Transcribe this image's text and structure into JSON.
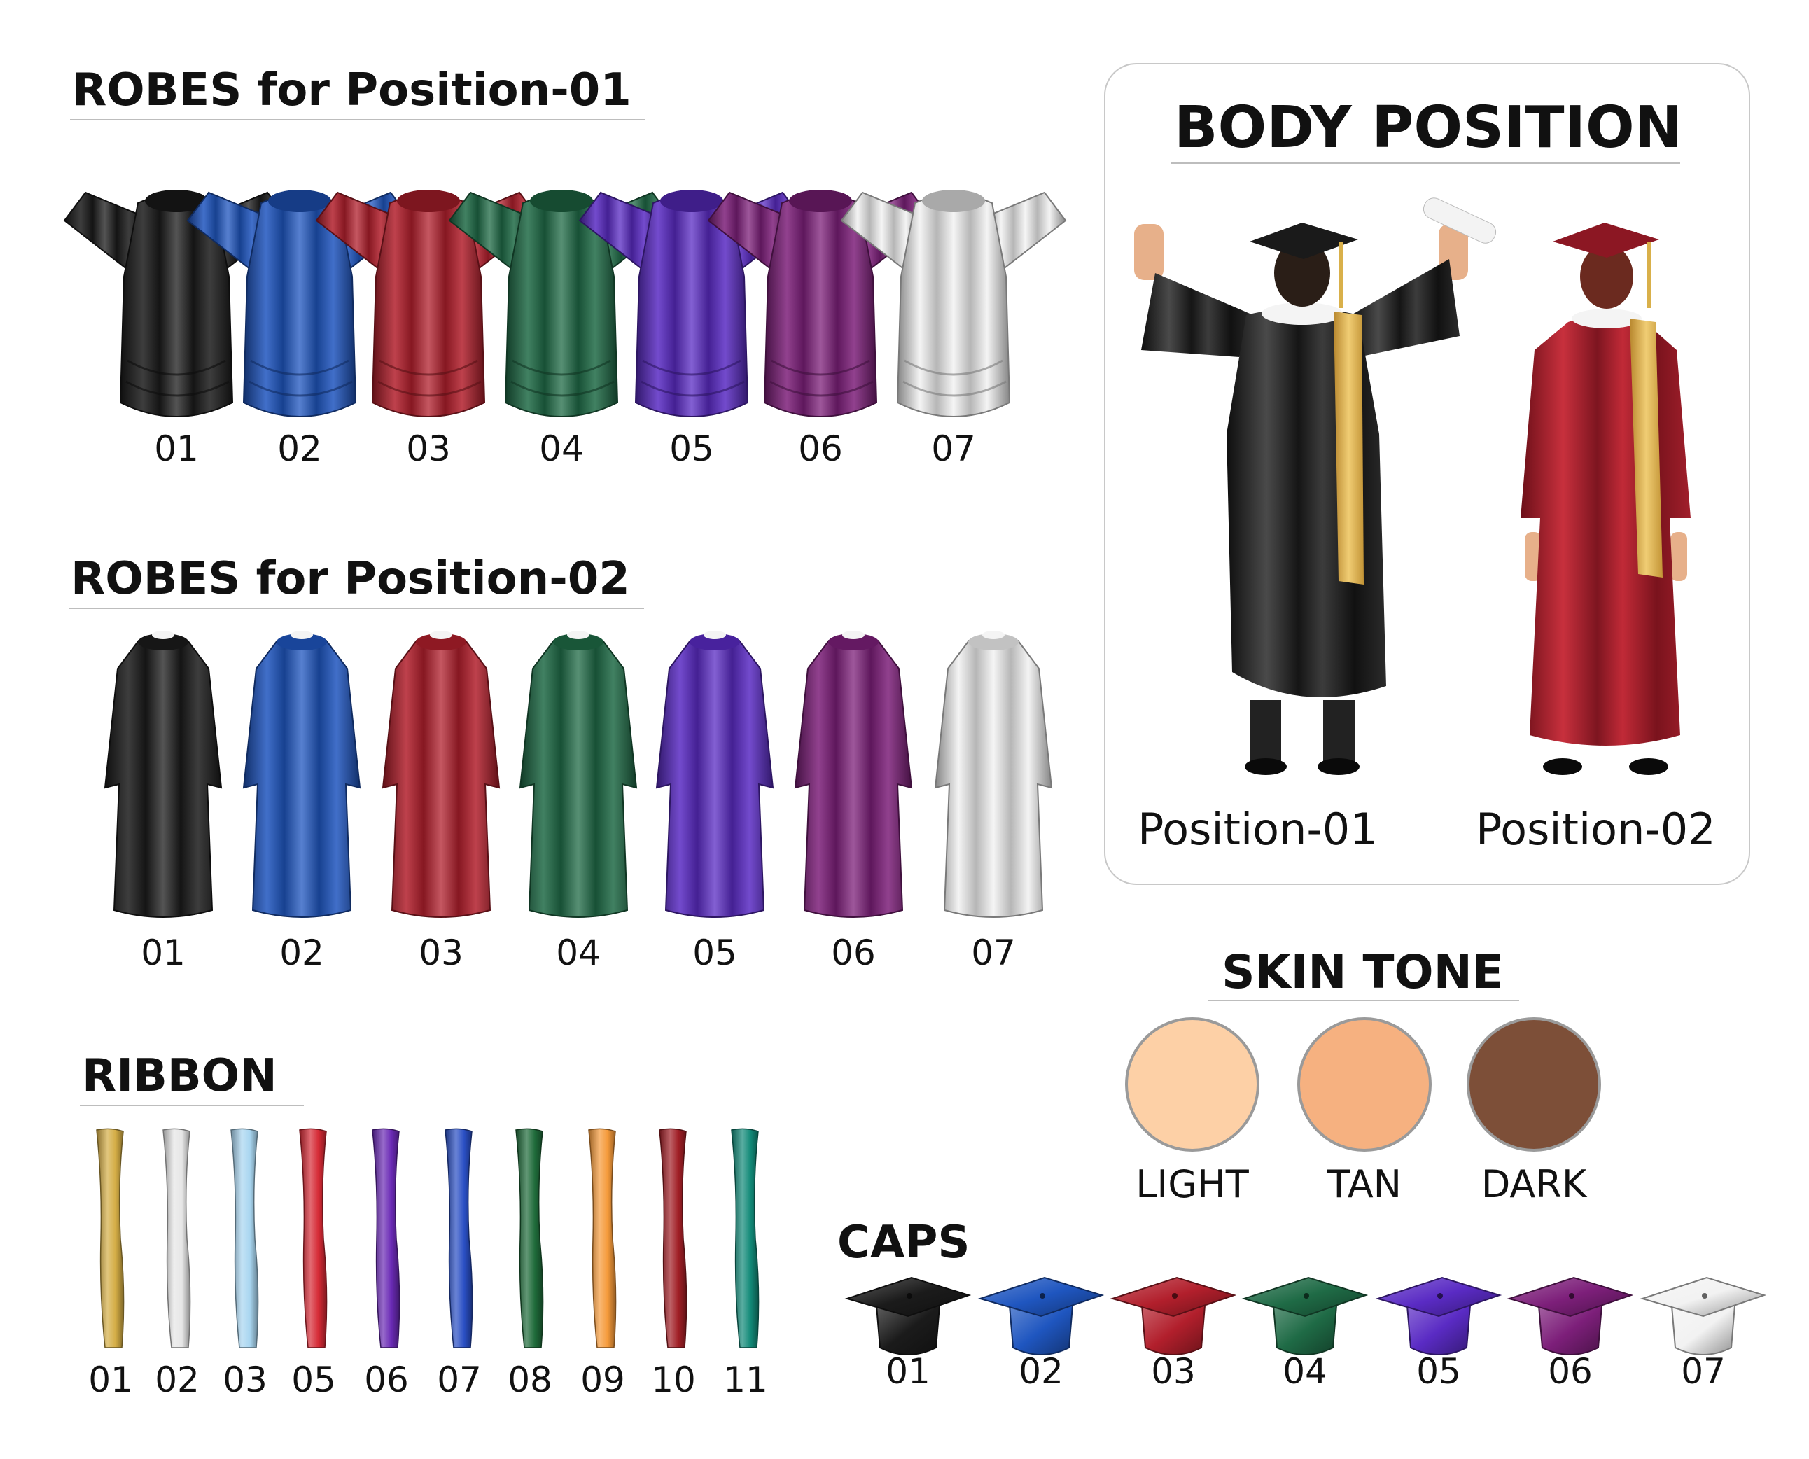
{
  "sections": {
    "robes1": {
      "title": "ROBES for Position-01",
      "labels": [
        "01",
        "02",
        "03",
        "04",
        "05",
        "06",
        "07"
      ]
    },
    "robes2": {
      "title": "ROBES for Position-02",
      "labels": [
        "01",
        "02",
        "03",
        "04",
        "05",
        "06",
        "07"
      ]
    },
    "ribbon": {
      "title": "RIBBON",
      "labels": [
        "01",
        "02",
        "03",
        "05",
        "06",
        "07",
        "08",
        "09",
        "10",
        "11"
      ]
    },
    "caps": {
      "title": "CAPS",
      "labels": [
        "01",
        "02",
        "03",
        "04",
        "05",
        "06",
        "07"
      ]
    },
    "body": {
      "title": "BODY POSITION",
      "pos1": "Position-01",
      "pos2": "Position-02"
    },
    "skin": {
      "title": "SKIN TONE",
      "labels": [
        "LIGHT",
        "TAN",
        "DARK"
      ]
    }
  },
  "colors": {
    "robes": [
      "#1b1b1b",
      "#1f56c0",
      "#b21f2c",
      "#1f6b46",
      "#5a2bc4",
      "#7d1f7a",
      "#f2f2f2"
    ],
    "ribbons": [
      "#d4ad45",
      "#e6e6e6",
      "#a9d6f0",
      "#d52a35",
      "#6a2ab5",
      "#2a4fc4",
      "#1f6b3a",
      "#f59a3a",
      "#a11f26",
      "#128a78"
    ],
    "skin": [
      "#fdd0a6",
      "#f6b180",
      "#7d4f38"
    ],
    "accent_gold": "#d9b04a"
  },
  "icons": [
    "robe-front-arms-up-icon",
    "robe-back-icon",
    "ribbon-icon",
    "mortarboard-cap-icon",
    "graduate-figure-icon",
    "skin-swatch-icon"
  ]
}
